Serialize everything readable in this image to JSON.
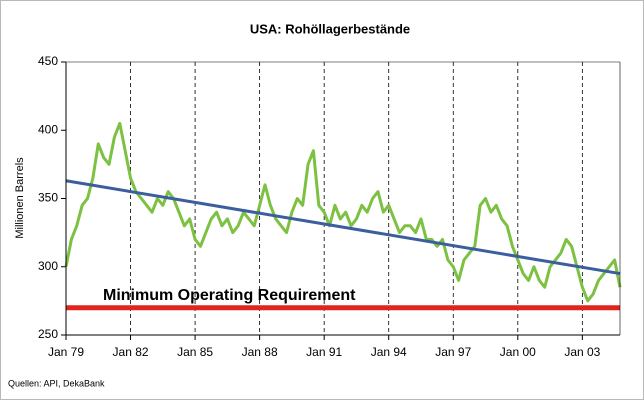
{
  "chart_data": {
    "type": "line",
    "title": "USA: Rohöllagerbestände",
    "y_label": "Millionen Barrels",
    "source": "Quellen: API, DekaBank",
    "xlim": [
      1979,
      2004.75
    ],
    "ylim": [
      250,
      450
    ],
    "yticks": [
      250,
      300,
      350,
      400,
      450
    ],
    "xticks": [
      {
        "value": 1979,
        "label": "Jan 79"
      },
      {
        "value": 1982,
        "label": "Jan 82"
      },
      {
        "value": 1985,
        "label": "Jan 85"
      },
      {
        "value": 1988,
        "label": "Jan 88"
      },
      {
        "value": 1991,
        "label": "Jan 91"
      },
      {
        "value": 1994,
        "label": "Jan 94"
      },
      {
        "value": 1997,
        "label": "Jan 97"
      },
      {
        "value": 2000,
        "label": "Jan 00"
      },
      {
        "value": 2003,
        "label": "Jan 03"
      }
    ],
    "x_grid": true,
    "series": [
      {
        "color": "#7dc142",
        "width": 3,
        "x": [
          1979,
          1979.25,
          1979.5,
          1979.75,
          1980,
          1980.25,
          1980.5,
          1980.75,
          1981,
          1981.25,
          1981.5,
          1981.75,
          1982,
          1982.25,
          1982.5,
          1982.75,
          1983,
          1983.25,
          1983.5,
          1983.75,
          1984,
          1984.25,
          1984.5,
          1984.75,
          1985,
          1985.25,
          1985.5,
          1985.75,
          1986,
          1986.25,
          1986.5,
          1986.75,
          1987,
          1987.25,
          1987.5,
          1987.75,
          1988,
          1988.25,
          1988.5,
          1988.75,
          1989,
          1989.25,
          1989.5,
          1989.75,
          1990,
          1990.25,
          1990.5,
          1990.75,
          1991,
          1991.25,
          1991.5,
          1991.75,
          1992,
          1992.25,
          1992.5,
          1992.75,
          1993,
          1993.25,
          1993.5,
          1993.75,
          1994,
          1994.25,
          1994.5,
          1994.75,
          1995,
          1995.25,
          1995.5,
          1995.75,
          1996,
          1996.25,
          1996.5,
          1996.75,
          1997,
          1997.25,
          1997.5,
          1997.75,
          1998,
          1998.25,
          1998.5,
          1998.75,
          1999,
          1999.25,
          1999.5,
          1999.75,
          2000,
          2000.25,
          2000.5,
          2000.75,
          2001,
          2001.25,
          2001.5,
          2001.75,
          2002,
          2002.25,
          2002.5,
          2002.75,
          2003,
          2003.25,
          2003.5,
          2003.75,
          2004,
          2004.25,
          2004.5,
          2004.75
        ],
        "values": [
          300,
          320,
          330,
          345,
          350,
          365,
          390,
          380,
          375,
          395,
          405,
          385,
          365,
          355,
          350,
          345,
          340,
          350,
          345,
          355,
          350,
          340,
          330,
          335,
          320,
          315,
          325,
          335,
          340,
          330,
          335,
          325,
          330,
          340,
          335,
          330,
          345,
          360,
          345,
          335,
          330,
          325,
          340,
          350,
          345,
          375,
          385,
          345,
          340,
          330,
          345,
          335,
          340,
          330,
          335,
          345,
          340,
          350,
          355,
          340,
          345,
          335,
          325,
          330,
          330,
          325,
          335,
          320,
          320,
          315,
          320,
          305,
          300,
          290,
          305,
          310,
          315,
          345,
          350,
          340,
          345,
          335,
          330,
          315,
          305,
          295,
          290,
          300,
          290,
          285,
          300,
          305,
          310,
          320,
          315,
          300,
          285,
          275,
          280,
          290,
          295,
          300,
          305,
          285
        ]
      },
      {
        "color": "#3a5e9e",
        "width": 3,
        "x": [
          1979,
          2004.75
        ],
        "values": [
          363,
          295
        ]
      }
    ],
    "reference_line": {
      "value": 270,
      "label": "Minimum Operating Requirement",
      "color": "#e0251c"
    }
  }
}
